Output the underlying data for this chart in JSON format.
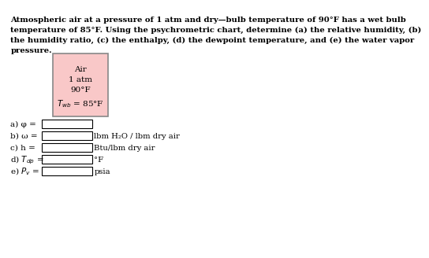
{
  "problem_text": "Atmospheric air at a pressure of 1 atm and dry—bulb temperature of 90°F has a wet bulb\ntemperature of 85°F. Using the psychrometric chart, determine (a) the relative humidity, (b)\nthe humidity ratio, (c) the enthalpy, (d) the dewpoint temperature, and (e) the water vapor\npressure.",
  "box_label_lines": [
    "Air",
    "1 atm",
    "90°F",
    "T_wb = 85°F"
  ],
  "box_facecolor": "#f9c8c8",
  "box_edgecolor": "#888888",
  "answers": [
    {
      "label": "a) φ =",
      "unit": ""
    },
    {
      "label": "b) ω =",
      "unit": "lbm H₂O / lbm dry air"
    },
    {
      "label": "c) h =",
      "unit": "Btu/lbm dry air"
    },
    {
      "label": "d) T_dp =",
      "unit": "°F"
    },
    {
      "label": "e) P_v =",
      "unit": "psia"
    }
  ],
  "background_color": "#ffffff",
  "text_color": "#000000",
  "input_box_color": "#ffffff",
  "input_box_edge": "#000000"
}
